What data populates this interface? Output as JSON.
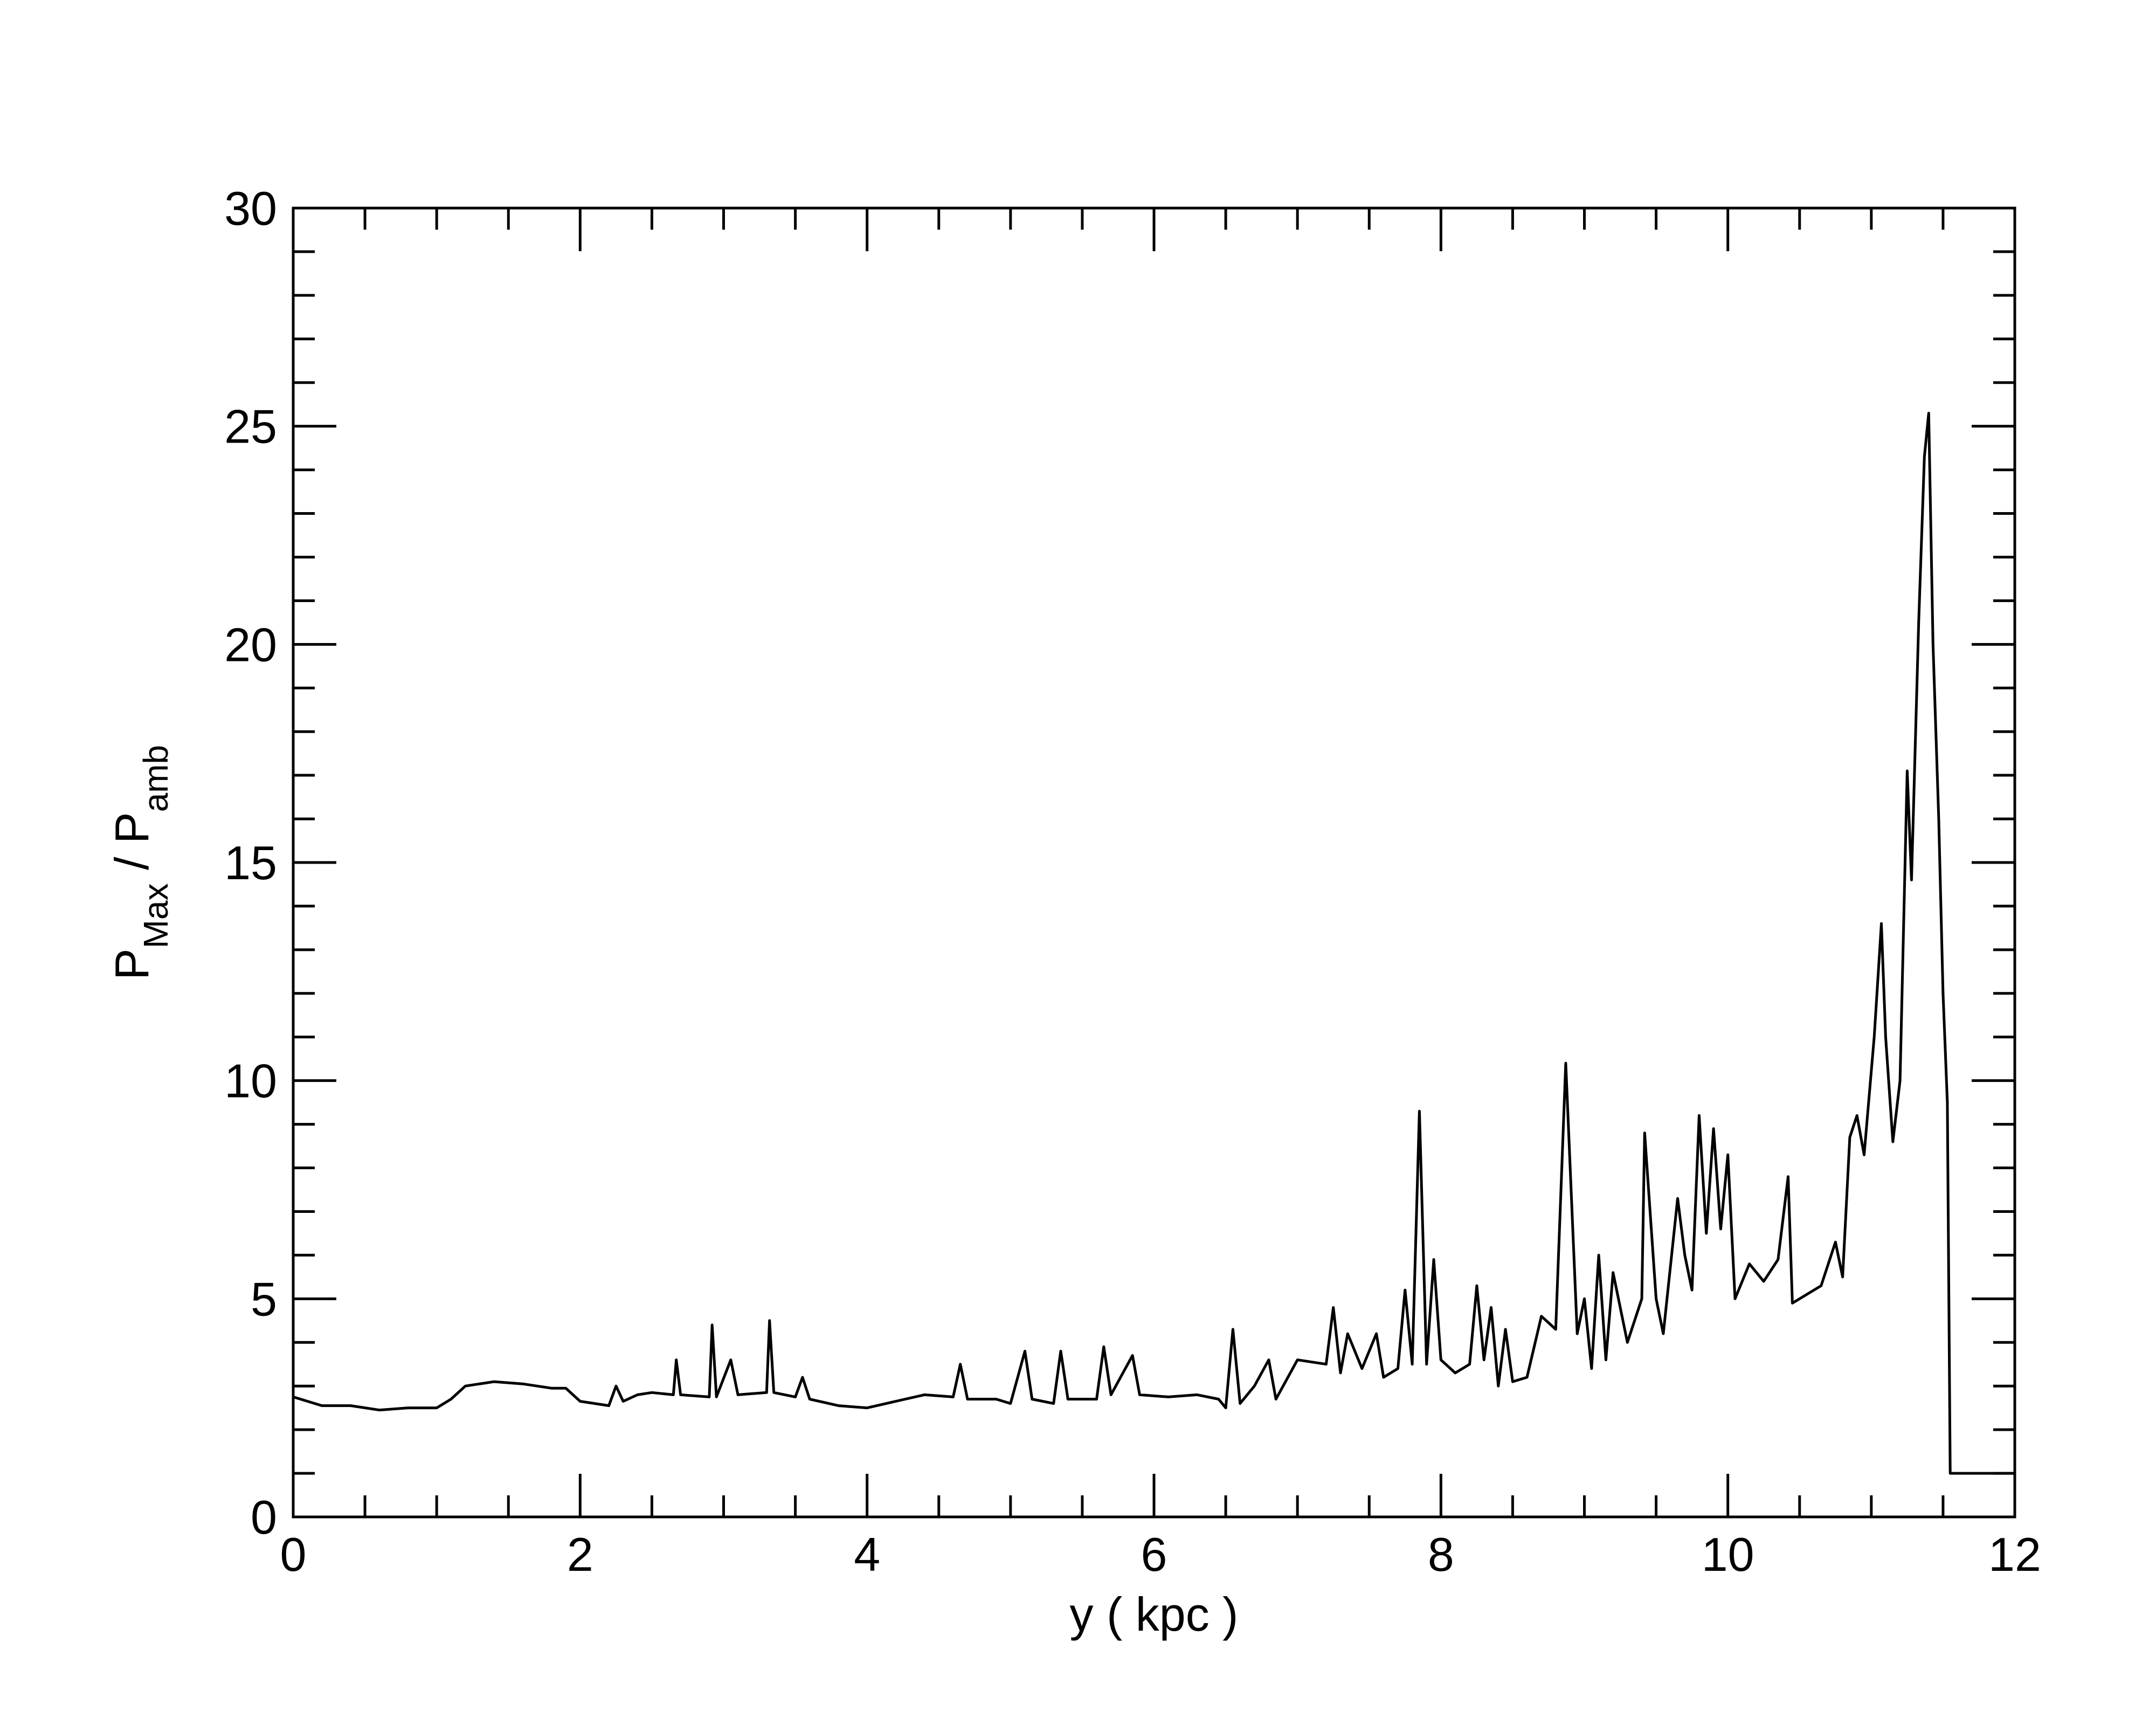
{
  "chart_data": {
    "type": "line",
    "xlabel": "y ( kpc )",
    "ylabel": [
      {
        "text": "P"
      },
      {
        "text": "Max",
        "sub": true
      },
      {
        "text": " / P"
      },
      {
        "text": "amb",
        "sub": true
      }
    ],
    "xlim": [
      0,
      12
    ],
    "ylim": [
      0,
      30
    ],
    "xticks": [
      0,
      2,
      4,
      6,
      8,
      10,
      12
    ],
    "yticks": [
      0,
      5,
      10,
      15,
      20,
      25,
      30
    ],
    "xminorticks": [
      0.5,
      1,
      1.5,
      2.5,
      3,
      3.5,
      4.5,
      5,
      5.5,
      6.5,
      7,
      7.5,
      8.5,
      9,
      9.5,
      10.5,
      11,
      11.5
    ],
    "yminorticks": [
      1,
      2,
      3,
      4,
      6,
      7,
      8,
      9,
      11,
      12,
      13,
      14,
      16,
      17,
      18,
      19,
      21,
      22,
      23,
      24,
      26,
      27,
      28,
      29
    ],
    "series": [
      {
        "color": "#000000",
        "x": [
          0,
          0.1,
          0.2,
          0.4,
          0.6,
          0.8,
          1.0,
          1.1,
          1.2,
          1.4,
          1.6,
          1.8,
          1.9,
          2.0,
          2.2,
          2.25,
          2.3,
          2.4,
          2.5,
          2.65,
          2.67,
          2.7,
          2.9,
          2.92,
          2.95,
          3.05,
          3.1,
          3.3,
          3.32,
          3.35,
          3.5,
          3.55,
          3.6,
          3.8,
          4.0,
          4.2,
          4.4,
          4.6,
          4.65,
          4.7,
          4.9,
          5.0,
          5.1,
          5.15,
          5.3,
          5.35,
          5.4,
          5.6,
          5.65,
          5.7,
          5.85,
          5.9,
          6.1,
          6.3,
          6.45,
          6.5,
          6.55,
          6.6,
          6.7,
          6.8,
          6.85,
          7.0,
          7.2,
          7.25,
          7.3,
          7.35,
          7.45,
          7.55,
          7.6,
          7.7,
          7.75,
          7.8,
          7.85,
          7.9,
          7.95,
          8.0,
          8.1,
          8.2,
          8.25,
          8.3,
          8.35,
          8.4,
          8.45,
          8.5,
          8.6,
          8.7,
          8.8,
          8.87,
          8.95,
          9.0,
          9.05,
          9.1,
          9.15,
          9.2,
          9.3,
          9.4,
          9.42,
          9.5,
          9.55,
          9.65,
          9.7,
          9.75,
          9.8,
          9.85,
          9.9,
          9.95,
          10.0,
          10.05,
          10.15,
          10.25,
          10.35,
          10.42,
          10.45,
          10.55,
          10.65,
          10.75,
          10.8,
          10.85,
          10.9,
          10.95,
          11.02,
          11.07,
          11.1,
          11.15,
          11.2,
          11.25,
          11.28,
          11.33,
          11.37,
          11.4,
          11.43,
          11.47,
          11.5,
          11.53,
          11.55,
          12.0
        ],
        "values": [
          2.75,
          2.65,
          2.55,
          2.55,
          2.45,
          2.5,
          2.5,
          2.7,
          3.0,
          3.1,
          3.05,
          2.95,
          2.95,
          2.65,
          2.55,
          3.0,
          2.65,
          2.8,
          2.85,
          2.8,
          3.6,
          2.8,
          2.75,
          4.4,
          2.75,
          3.6,
          2.8,
          2.85,
          4.5,
          2.85,
          2.75,
          3.2,
          2.7,
          2.55,
          2.5,
          2.65,
          2.8,
          2.75,
          3.5,
          2.7,
          2.7,
          2.6,
          3.8,
          2.7,
          2.6,
          3.8,
          2.7,
          2.7,
          3.9,
          2.8,
          3.7,
          2.8,
          2.75,
          2.8,
          2.7,
          2.5,
          4.3,
          2.6,
          3.0,
          3.6,
          2.7,
          3.6,
          3.5,
          4.8,
          3.3,
          4.2,
          3.4,
          4.2,
          3.2,
          3.4,
          5.2,
          3.5,
          9.3,
          3.5,
          5.9,
          3.6,
          3.3,
          3.5,
          5.3,
          3.6,
          4.8,
          3.0,
          4.3,
          3.1,
          3.2,
          4.6,
          4.3,
          10.4,
          4.2,
          5.0,
          3.4,
          6.0,
          3.6,
          5.6,
          4.0,
          5.0,
          8.8,
          5.0,
          4.2,
          7.3,
          6.0,
          5.2,
          9.2,
          6.5,
          8.9,
          6.6,
          8.3,
          5.0,
          5.8,
          5.4,
          5.9,
          7.8,
          4.9,
          5.1,
          5.3,
          6.3,
          5.5,
          8.7,
          9.2,
          8.3,
          11.0,
          13.6,
          11.0,
          8.6,
          10.0,
          17.1,
          14.6,
          20.5,
          24.3,
          25.3,
          20.0,
          16.0,
          12.0,
          9.5,
          1.0,
          1.0
        ]
      }
    ]
  }
}
